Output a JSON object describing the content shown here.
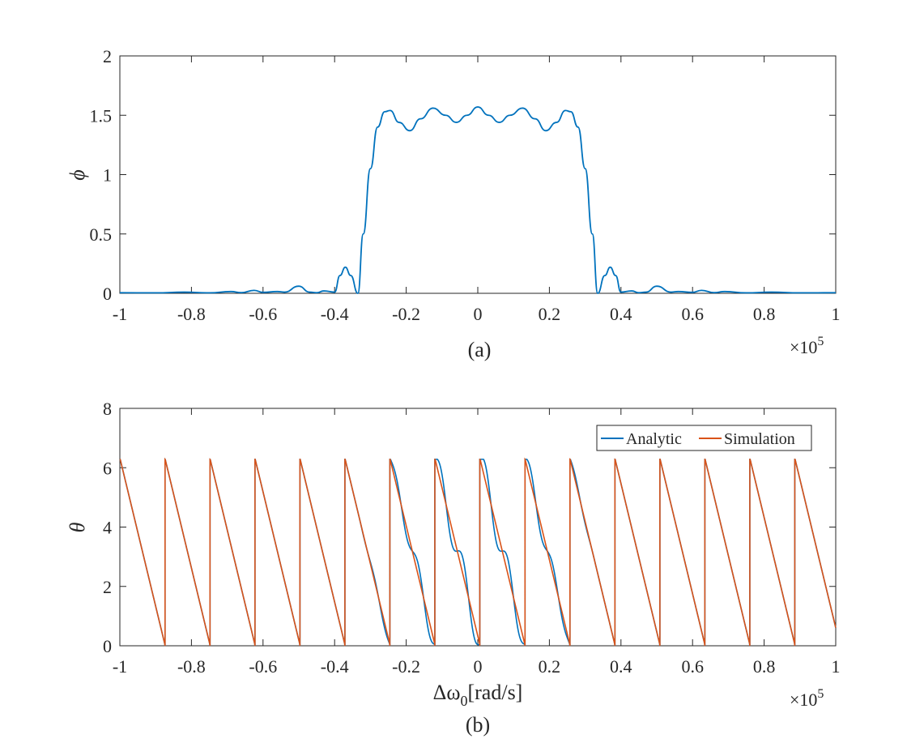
{
  "chart_data": [
    {
      "type": "line",
      "panel_label": "(a)",
      "ylabel": "ϕ",
      "xlabel": "",
      "xlim": [
        -1,
        1
      ],
      "ylim": [
        0,
        2
      ],
      "x_ticks": [
        "-1",
        "-0.8",
        "-0.6",
        "-0.4",
        "-0.2",
        "0",
        "0.2",
        "0.4",
        "0.6",
        "0.8",
        "1"
      ],
      "y_ticks": [
        "0",
        "0.5",
        "1",
        "1.5",
        "2"
      ],
      "x_exponent": "×10",
      "x_exponent_power": "5",
      "grid": false,
      "series": [
        {
          "color": "#0072BD",
          "points": [
            [
              -1.0,
              0.005
            ],
            [
              -0.9,
              0.004
            ],
            [
              -0.82,
              0.01
            ],
            [
              -0.75,
              0.004
            ],
            [
              -0.69,
              0.015
            ],
            [
              -0.66,
              0.006
            ],
            [
              -0.625,
              0.025
            ],
            [
              -0.6,
              0.008
            ],
            [
              -0.56,
              0.015
            ],
            [
              -0.54,
              0.01
            ],
            [
              -0.5,
              0.06
            ],
            [
              -0.47,
              0.01
            ],
            [
              -0.45,
              0.005
            ],
            [
              -0.43,
              0.02
            ],
            [
              -0.4,
              0.01
            ],
            [
              -0.385,
              0.15
            ],
            [
              -0.37,
              0.22
            ],
            [
              -0.355,
              0.15
            ],
            [
              -0.335,
              0.0
            ],
            [
              -0.32,
              0.5
            ],
            [
              -0.3,
              1.05
            ],
            [
              -0.28,
              1.4
            ],
            [
              -0.26,
              1.53
            ],
            [
              -0.245,
              1.54
            ],
            [
              -0.22,
              1.44
            ],
            [
              -0.19,
              1.37
            ],
            [
              -0.16,
              1.47
            ],
            [
              -0.125,
              1.56
            ],
            [
              -0.09,
              1.5
            ],
            [
              -0.06,
              1.44
            ],
            [
              -0.03,
              1.5
            ],
            [
              0.0,
              1.57
            ],
            [
              0.03,
              1.5
            ],
            [
              0.06,
              1.44
            ],
            [
              0.09,
              1.5
            ],
            [
              0.125,
              1.56
            ],
            [
              0.16,
              1.47
            ],
            [
              0.19,
              1.37
            ],
            [
              0.22,
              1.44
            ],
            [
              0.245,
              1.54
            ],
            [
              0.26,
              1.53
            ],
            [
              0.28,
              1.4
            ],
            [
              0.3,
              1.05
            ],
            [
              0.32,
              0.5
            ],
            [
              0.335,
              0.0
            ],
            [
              0.355,
              0.15
            ],
            [
              0.37,
              0.22
            ],
            [
              0.385,
              0.15
            ],
            [
              0.4,
              0.01
            ],
            [
              0.43,
              0.02
            ],
            [
              0.45,
              0.005
            ],
            [
              0.47,
              0.01
            ],
            [
              0.5,
              0.06
            ],
            [
              0.54,
              0.01
            ],
            [
              0.56,
              0.015
            ],
            [
              0.6,
              0.008
            ],
            [
              0.625,
              0.025
            ],
            [
              0.66,
              0.006
            ],
            [
              0.69,
              0.015
            ],
            [
              0.75,
              0.004
            ],
            [
              0.82,
              0.01
            ],
            [
              0.9,
              0.004
            ],
            [
              1.0,
              0.005
            ]
          ]
        }
      ]
    },
    {
      "type": "line",
      "panel_label": "(b)",
      "ylabel": "θ",
      "xlabel_main": "Δω",
      "xlabel_sub": "0",
      "xlabel_unit": "[rad/s]",
      "xlim": [
        -1,
        1
      ],
      "ylim": [
        0,
        8
      ],
      "x_ticks": [
        "-1",
        "-0.8",
        "-0.6",
        "-0.4",
        "-0.2",
        "0",
        "0.2",
        "0.4",
        "0.6",
        "0.8",
        "1"
      ],
      "y_ticks": [
        "0",
        "2",
        "4",
        "6",
        "8"
      ],
      "x_exponent": "×10",
      "x_exponent_power": "5",
      "grid": false,
      "legend_position": "top-right",
      "wrap_period": 0.1257,
      "theta_max": 6.2832,
      "series": [
        {
          "name": "Analytic",
          "color": "#0072BD",
          "ripple_amplitude": 0.55,
          "ripple_extent": 0.33
        },
        {
          "name": "Simulation",
          "color": "#D95319",
          "ripple_amplitude": 0.0,
          "ripple_extent": 0.0
        }
      ]
    }
  ]
}
